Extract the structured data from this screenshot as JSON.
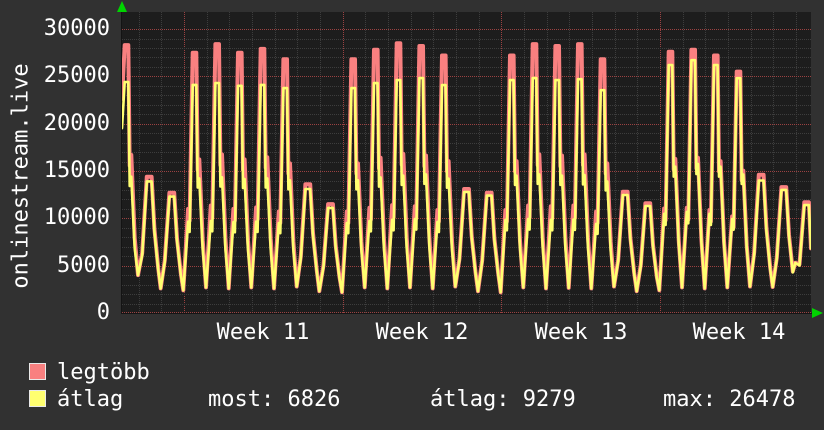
{
  "vertical_label": "onlinestream.live",
  "colors": {
    "page_bg": "#313131",
    "plot_bg": "#1d1d1d",
    "grid_minor": "#3d3d3d",
    "grid_major": "#9b4242",
    "text": "#ffffff",
    "arrow_green": "#00d400",
    "max_line": "#f98080",
    "avg_line": "#ffff70"
  },
  "legend": {
    "series": [
      {
        "label": "legtöbb",
        "color": "#f98080"
      },
      {
        "label": "átlag",
        "color": "#ffff70"
      }
    ],
    "stats": [
      {
        "label": "most",
        "value": "6826",
        "text": "most: 6826"
      },
      {
        "label": "átlag",
        "value": "9279",
        "text": "átlag: 9279"
      },
      {
        "label": "max",
        "value": "26478",
        "text": "max: 26478"
      }
    ]
  },
  "chart_data": {
    "type": "line",
    "title": "",
    "ylabel": "onlinestream.live",
    "xlabel": "",
    "ylim": [
      0,
      30000
    ],
    "y_ticks": [
      0,
      5000,
      10000,
      15000,
      20000,
      25000,
      30000
    ],
    "y_tick_labels": [
      "0",
      "5000",
      "10000",
      "15000",
      "20000",
      "25000",
      "30000"
    ],
    "x_tick_labels": [
      "Week 11",
      "Week 12",
      "Week 13",
      "Week 14"
    ],
    "grid": {
      "minor_y_step": 1000,
      "major_y_step": 5000,
      "minor_x_step_days": 1,
      "major_x_step_days": 7,
      "style": "dotted"
    },
    "legend_position": "bottom-left",
    "series": [
      {
        "name": "legtöbb",
        "role": "max",
        "color": "#f98080"
      },
      {
        "name": "átlag",
        "role": "avg",
        "color": "#ffff70"
      }
    ],
    "end_value": 6826,
    "days": [
      {
        "max": 28300,
        "avg": 24400,
        "night": 4000
      },
      {
        "max": 14400,
        "avg": 13900,
        "night": 2600
      },
      {
        "max": 12700,
        "avg": 12300,
        "night": 2400
      },
      {
        "max": 27500,
        "avg": 24100,
        "night": 2700
      },
      {
        "max": 28400,
        "avg": 24300,
        "night": 2600
      },
      {
        "max": 27500,
        "avg": 24000,
        "night": 2700
      },
      {
        "max": 27900,
        "avg": 24100,
        "night": 2600
      },
      {
        "max": 26800,
        "avg": 23760,
        "night": 2800
      },
      {
        "max": 13600,
        "avg": 13100,
        "night": 2300
      },
      {
        "max": 11500,
        "avg": 11100,
        "night": 2200
      },
      {
        "max": 26800,
        "avg": 23760,
        "night": 2700
      },
      {
        "max": 27800,
        "avg": 24280,
        "night": 2600
      },
      {
        "max": 28500,
        "avg": 24600,
        "night": 2700
      },
      {
        "max": 28200,
        "avg": 24810,
        "night": 2600
      },
      {
        "max": 27200,
        "avg": 24070,
        "night": 2800
      },
      {
        "max": 13100,
        "avg": 12780,
        "night": 2300
      },
      {
        "max": 12700,
        "avg": 12400,
        "night": 2200
      },
      {
        "max": 27200,
        "avg": 24600,
        "night": 2700
      },
      {
        "max": 28400,
        "avg": 24810,
        "night": 2600
      },
      {
        "max": 28200,
        "avg": 24600,
        "night": 2650
      },
      {
        "max": 28400,
        "avg": 24700,
        "night": 2600
      },
      {
        "max": 26800,
        "avg": 23540,
        "night": 2800
      },
      {
        "max": 12800,
        "avg": 12460,
        "night": 2300
      },
      {
        "max": 11600,
        "avg": 11300,
        "night": 2400
      },
      {
        "max": 27600,
        "avg": 26200,
        "night": 2700
      },
      {
        "max": 27800,
        "avg": 26700,
        "night": 2600
      },
      {
        "max": 27200,
        "avg": 26200,
        "night": 2700
      },
      {
        "max": 25500,
        "avg": 24800,
        "night": 2800
      },
      {
        "max": 14600,
        "avg": 14000,
        "night": 2750
      },
      {
        "max": 13300,
        "avg": 13000,
        "night": 5300
      },
      {
        "max": 11700,
        "avg": 11400,
        "night": 6826
      }
    ]
  }
}
